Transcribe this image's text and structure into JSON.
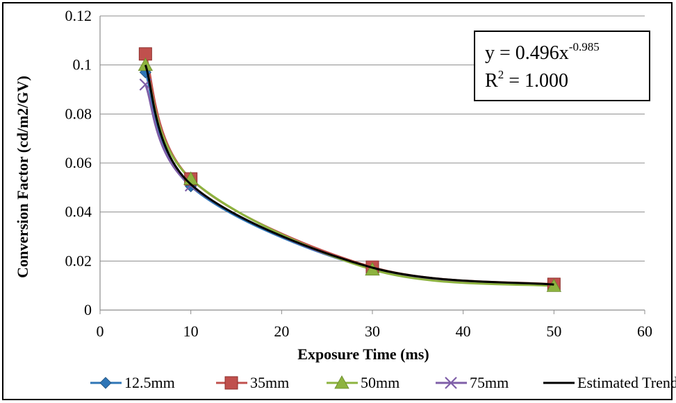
{
  "chart_data": {
    "type": "line",
    "title": "",
    "xlabel": "Exposure Time (ms)",
    "ylabel": "Conversion Factor (cd/m2/GV)",
    "xlim": [
      0,
      60
    ],
    "ylim": [
      0,
      0.12
    ],
    "x_ticks": [
      "0",
      "10",
      "20",
      "30",
      "40",
      "50",
      "60"
    ],
    "y_ticks": [
      "0",
      "0.02",
      "0.04",
      "0.06",
      "0.08",
      "0.1",
      "0.12"
    ],
    "grid": "horizontal",
    "legend_position": "bottom",
    "x": [
      5,
      10,
      30,
      50
    ],
    "series": [
      {
        "name": "12.5mm",
        "color": "#2E75B6",
        "marker": "diamond",
        "values": [
          0.097,
          0.0505,
          0.0168,
          0.0101
        ]
      },
      {
        "name": "35mm",
        "color": "#C0504D",
        "marker": "square",
        "values": [
          0.1045,
          0.0535,
          0.0175,
          0.0105
        ]
      },
      {
        "name": "50mm",
        "color": "#8DB33F",
        "marker": "triangle",
        "values": [
          0.1,
          0.0535,
          0.0165,
          0.0098
        ]
      },
      {
        "name": "75mm",
        "color": "#7F5FA8",
        "marker": "x",
        "values": [
          0.092,
          0.0508,
          0.0168,
          0.01
        ]
      },
      {
        "name": "Estimated Trend",
        "color": "#000000",
        "marker": "none",
        "values": [
          0.1,
          0.0513,
          0.0173,
          0.0104
        ]
      }
    ],
    "annotation": {
      "eq_prefix": "y = 0.496x",
      "eq_exponent": "-0.985",
      "r2_prefix": "R",
      "r2_sup": "2",
      "r2_suffix": " = 1.000"
    }
  }
}
